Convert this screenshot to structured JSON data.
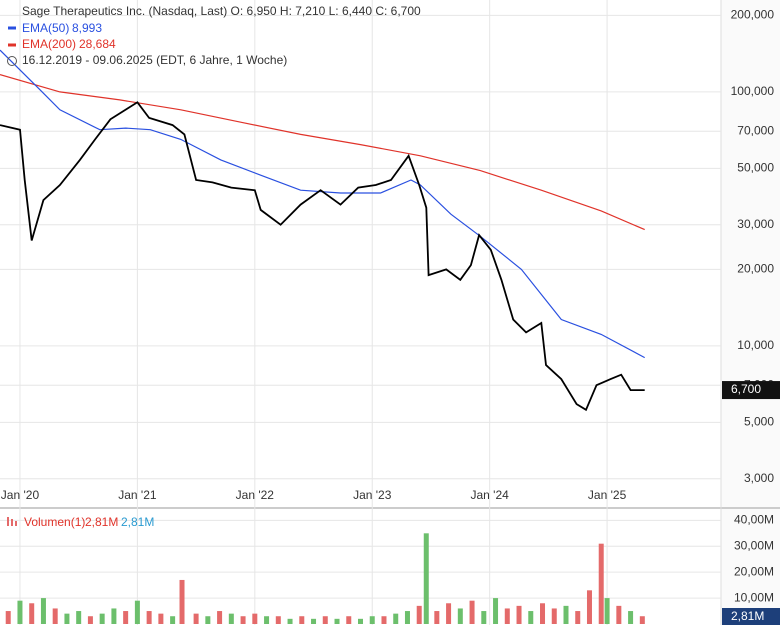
{
  "chart_data": [
    {
      "type": "line",
      "title": "Sage Therapeutics Inc. (Nasdaq, Last)  O: 6,950  H: 7,210  L: 6,440  C: 6,700",
      "subtitle": "16.12.2019 - 09.06.2025   (EDT, 6 Jahre, 1 Woche)",
      "log_scale": true,
      "grid": true,
      "xlim": [
        2019.83,
        2025.97
      ],
      "ylim": [
        2.3,
        230
      ],
      "xticks": [
        {
          "value": 2020,
          "label": "Jan '20"
        },
        {
          "value": 2021,
          "label": "Jan '21"
        },
        {
          "value": 2022,
          "label": "Jan '22"
        },
        {
          "value": 2023,
          "label": "Jan '23"
        },
        {
          "value": 2024,
          "label": "Jan '24"
        },
        {
          "value": 2025,
          "label": "Jan '25"
        }
      ],
      "yticks": [
        {
          "value": 200,
          "label": "200,000"
        },
        {
          "value": 100,
          "label": "100,000"
        },
        {
          "value": 70,
          "label": "70,000"
        },
        {
          "value": 50,
          "label": "50,000"
        },
        {
          "value": 30,
          "label": "30,000"
        },
        {
          "value": 20,
          "label": "20,000"
        },
        {
          "value": 10,
          "label": "10,000"
        },
        {
          "value": 7,
          "label": "7,000"
        },
        {
          "value": 5,
          "label": "5,000"
        },
        {
          "value": 3,
          "label": "3,000"
        }
      ],
      "series": [
        {
          "color": "#000000",
          "last_label": "6,700",
          "x": [
            2019.83,
            2020.0,
            2020.04,
            2020.1,
            2020.2,
            2020.34,
            2020.51,
            2020.64,
            2020.77,
            2021.0,
            2021.1,
            2021.3,
            2021.4,
            2021.5,
            2021.64,
            2021.8,
            2022.0,
            2022.05,
            2022.22,
            2022.39,
            2022.56,
            2022.73,
            2022.88,
            2023.03,
            2023.16,
            2023.31,
            2023.4,
            2023.46,
            2023.48,
            2023.63,
            2023.75,
            2023.84,
            2023.91,
            2024.01,
            2024.1,
            2024.2,
            2024.31,
            2024.44,
            2024.48,
            2024.61,
            2024.74,
            2024.82,
            2024.91,
            2025.03,
            2025.12,
            2025.2,
            2025.32
          ],
          "values": [
            74,
            71,
            45,
            26,
            37.5,
            43,
            54,
            65,
            78,
            91,
            79,
            74,
            68,
            45,
            44,
            42,
            41,
            34.3,
            30,
            36,
            41,
            36,
            42,
            43,
            45,
            56,
            43,
            35,
            19,
            20,
            18.2,
            20.8,
            27.3,
            23.9,
            18.2,
            12.7,
            11.3,
            12.3,
            8.4,
            7.4,
            5.9,
            5.6,
            7.0,
            7.4,
            7.7,
            6.7,
            6.7
          ]
        },
        {
          "name": "EMA(50)",
          "color": "#2a50e0",
          "last_label": "8,993",
          "x": [
            2019.83,
            2020.17,
            2020.34,
            2020.68,
            2020.9,
            2021.11,
            2021.37,
            2021.71,
            2022.05,
            2022.39,
            2022.73,
            2023.07,
            2023.33,
            2023.41,
            2023.67,
            2023.92,
            2024.27,
            2024.61,
            2024.95,
            2025.32
          ],
          "values": [
            146,
            102,
            85,
            71,
            72,
            71,
            65,
            54,
            47,
            41,
            40,
            40,
            45,
            43,
            33,
            27,
            20,
            12.7,
            11.1,
            8.99
          ]
        },
        {
          "name": "EMA(200)",
          "color": "#e0332a",
          "last_label": "28,684",
          "x": [
            2019.83,
            2020.34,
            2020.85,
            2021.37,
            2021.88,
            2022.39,
            2022.9,
            2023.41,
            2023.92,
            2024.44,
            2024.95,
            2025.32
          ],
          "values": [
            117,
            100,
            93,
            85,
            76,
            68,
            62,
            56,
            49,
            41,
            34,
            28.7
          ]
        }
      ]
    },
    {
      "type": "bar",
      "title": "Volumen(1)",
      "legend_values": [
        "2,81M",
        "2,81M"
      ],
      "last_label": "2,81M",
      "grid": true,
      "xlim": [
        2019.83,
        2025.97
      ],
      "ylim": [
        0,
        44
      ],
      "yticks": [
        {
          "value": 10,
          "label": "10,00M"
        },
        {
          "value": 20,
          "label": "20,00M"
        },
        {
          "value": 30,
          "label": "30,00M"
        },
        {
          "value": 40,
          "label": "40,00M"
        }
      ],
      "x": [
        2019.9,
        2020.0,
        2020.1,
        2020.2,
        2020.3,
        2020.4,
        2020.5,
        2020.6,
        2020.7,
        2020.8,
        2020.9,
        2021.0,
        2021.1,
        2021.2,
        2021.3,
        2021.38,
        2021.5,
        2021.6,
        2021.7,
        2021.8,
        2021.9,
        2022.0,
        2022.1,
        2022.2,
        2022.3,
        2022.4,
        2022.5,
        2022.6,
        2022.7,
        2022.8,
        2022.9,
        2023.0,
        2023.1,
        2023.2,
        2023.3,
        2023.4,
        2023.46,
        2023.55,
        2023.65,
        2023.75,
        2023.85,
        2023.95,
        2024.05,
        2024.15,
        2024.25,
        2024.35,
        2024.45,
        2024.55,
        2024.65,
        2024.75,
        2024.85,
        2024.95,
        2025.0,
        2025.1,
        2025.2,
        2025.3
      ],
      "values": [
        5,
        9,
        8,
        10,
        6,
        4,
        5,
        3,
        4,
        6,
        5,
        9,
        5,
        4,
        3,
        17,
        4,
        3,
        5,
        4,
        3,
        4,
        3,
        3,
        2,
        3,
        2,
        3,
        2,
        3,
        2,
        3,
        3,
        4,
        5,
        7,
        35,
        5,
        8,
        6,
        9,
        5,
        10,
        6,
        7,
        5,
        8,
        6,
        7,
        5,
        13,
        31,
        10,
        7,
        5,
        3
      ],
      "colors": [
        "#e46a6a",
        "#6cbf6c",
        "#e46a6a",
        "#6cbf6c",
        "#e46a6a",
        "#6cbf6c",
        "#6cbf6c",
        "#e46a6a",
        "#6cbf6c",
        "#6cbf6c",
        "#e46a6a",
        "#6cbf6c",
        "#e46a6a",
        "#e46a6a",
        "#6cbf6c",
        "#e46a6a",
        "#e46a6a",
        "#6cbf6c",
        "#e46a6a",
        "#6cbf6c",
        "#e46a6a",
        "#e46a6a",
        "#6cbf6c",
        "#e46a6a",
        "#6cbf6c",
        "#e46a6a",
        "#6cbf6c",
        "#e46a6a",
        "#6cbf6c",
        "#e46a6a",
        "#6cbf6c",
        "#6cbf6c",
        "#e46a6a",
        "#6cbf6c",
        "#6cbf6c",
        "#e46a6a",
        "#6cbf6c",
        "#e46a6a",
        "#e46a6a",
        "#6cbf6c",
        "#e46a6a",
        "#6cbf6c",
        "#6cbf6c",
        "#e46a6a",
        "#e46a6a",
        "#6cbf6c",
        "#e46a6a",
        "#e46a6a",
        "#6cbf6c",
        "#e46a6a",
        "#e46a6a",
        "#e46a6a",
        "#6cbf6c",
        "#e46a6a",
        "#6cbf6c",
        "#e46a6a"
      ]
    }
  ]
}
